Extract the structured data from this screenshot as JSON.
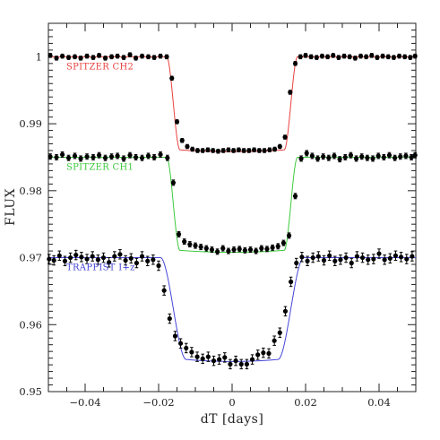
{
  "chart_data": {
    "type": "scatter",
    "title": "",
    "xlabel": "dT [days]",
    "ylabel": "FLUX",
    "xlim": [
      -0.05,
      0.05
    ],
    "ylim": [
      0.95,
      1.005
    ],
    "x_ticks": [
      -0.04,
      -0.02,
      0,
      0.02,
      0.04
    ],
    "x_tick_labels": [
      "−0.04",
      "−0.02",
      "0",
      "0.02",
      "0.04"
    ],
    "y_ticks": [
      0.95,
      0.96,
      0.97,
      0.98,
      0.99,
      1
    ],
    "y_tick_labels": [
      "0.95",
      "0.96",
      "0.97",
      "0.98",
      "0.99",
      "1"
    ],
    "grid": false,
    "series": [
      {
        "name": "SPITZER CH2",
        "color": "#e8423f",
        "label_position": "upper-left",
        "baseline": 1.0,
        "transit_depth": 0.0139,
        "ingress_start": -0.0178,
        "ingress_end": -0.0142,
        "egress_start": 0.0142,
        "egress_end": 0.0178,
        "x": [
          -0.0495,
          -0.0478,
          -0.0462,
          -0.0445,
          -0.0428,
          -0.0412,
          -0.0395,
          -0.0378,
          -0.0362,
          -0.0345,
          -0.0328,
          -0.0312,
          -0.0295,
          -0.0278,
          -0.0262,
          -0.0245,
          -0.0228,
          -0.0212,
          -0.0195,
          -0.0178,
          -0.0164,
          -0.015,
          -0.0136,
          -0.0122,
          -0.0108,
          -0.0094,
          -0.008,
          -0.0066,
          -0.0052,
          -0.0038,
          -0.0024,
          -0.001,
          0.0004,
          0.0018,
          0.0032,
          0.0046,
          0.006,
          0.0074,
          0.0088,
          0.0102,
          0.0116,
          0.013,
          0.0144,
          0.0158,
          0.0172,
          0.0186,
          0.02,
          0.0215,
          0.023,
          0.0245,
          0.026,
          0.0275,
          0.029,
          0.0305,
          0.032,
          0.0335,
          0.035,
          0.0365,
          0.038,
          0.0395,
          0.041,
          0.0425,
          0.044,
          0.0455,
          0.047,
          0.0485,
          0.0498
        ],
        "y": [
          1.0002,
          0.9998,
          1.0001,
          0.9999,
          1.0,
          0.9998,
          1.0001,
          0.9999,
          1.0002,
          0.9998,
          1.0,
          1.0001,
          0.9999,
          1.0003,
          0.9998,
          1.0001,
          1.0,
          0.9999,
          1.0001,
          1.0,
          0.9968,
          0.9903,
          0.9875,
          0.9866,
          0.9862,
          0.986,
          0.986,
          0.9861,
          0.986,
          0.9859,
          0.986,
          0.9861,
          0.986,
          0.9861,
          0.986,
          0.986,
          0.9861,
          0.986,
          0.986,
          0.9861,
          0.9862,
          0.9866,
          0.988,
          0.9947,
          0.999,
          1.0,
          1.0002,
          1.0,
          0.9999,
          1.0001,
          1.0,
          1.0002,
          0.9999,
          1.0001,
          1.0,
          0.9998,
          1.0001,
          1.0,
          1.0002,
          0.9999,
          1.0001,
          1.0,
          0.9999,
          1.0001,
          1.0,
          0.9999,
          1.0001
        ],
        "errors": [
          0.0003,
          0.0003,
          0.0003,
          0.0003,
          0.0003,
          0.0003,
          0.0003,
          0.0003,
          0.0003,
          0.0003,
          0.0003,
          0.0003,
          0.0003,
          0.0003,
          0.0003,
          0.0003,
          0.0003,
          0.0003,
          0.0003,
          0.0003,
          0.0003,
          0.0003,
          0.0003,
          0.0003,
          0.0003,
          0.0003,
          0.0003,
          0.0003,
          0.0003,
          0.0003,
          0.0003,
          0.0003,
          0.0003,
          0.0003,
          0.0003,
          0.0003,
          0.0003,
          0.0003,
          0.0003,
          0.0003,
          0.0003,
          0.0003,
          0.0003,
          0.0003,
          0.0003,
          0.0003,
          0.0003,
          0.0003,
          0.0003,
          0.0003,
          0.0003,
          0.0003,
          0.0003,
          0.0003,
          0.0003,
          0.0003,
          0.0003,
          0.0003,
          0.0003,
          0.0003,
          0.0003,
          0.0003,
          0.0003,
          0.0003,
          0.0003,
          0.0003,
          0.0003
        ]
      },
      {
        "name": "SPITZER CH1",
        "color": "#3ec93e",
        "label_position": "middle-left",
        "baseline": 0.985,
        "transit_depth": 0.0139,
        "ingress_start": -0.0178,
        "ingress_end": -0.0142,
        "egress_start": 0.0142,
        "egress_end": 0.0178,
        "x": [
          -0.0495,
          -0.0478,
          -0.0462,
          -0.0445,
          -0.0428,
          -0.0412,
          -0.0395,
          -0.0378,
          -0.0362,
          -0.0345,
          -0.0328,
          -0.0312,
          -0.0295,
          -0.0278,
          -0.0262,
          -0.0245,
          -0.0228,
          -0.0212,
          -0.0195,
          -0.0176,
          -0.016,
          -0.0145,
          -0.013,
          -0.0115,
          -0.01,
          -0.0085,
          -0.007,
          -0.0055,
          -0.004,
          -0.0025,
          -0.001,
          0.0005,
          0.002,
          0.0035,
          0.005,
          0.0065,
          0.008,
          0.0095,
          0.011,
          0.0125,
          0.014,
          0.0155,
          0.0172,
          0.0188,
          0.0203,
          0.0218,
          0.0233,
          0.0248,
          0.0263,
          0.0278,
          0.0293,
          0.0308,
          0.0323,
          0.0338,
          0.0353,
          0.0368,
          0.0383,
          0.0398,
          0.0413,
          0.0428,
          0.0443,
          0.0458,
          0.0473,
          0.0488,
          0.0498
        ],
        "y": [
          0.9851,
          0.985,
          0.9854,
          0.9849,
          0.9852,
          0.9848,
          0.9851,
          0.985,
          0.9853,
          0.9849,
          0.9851,
          0.9852,
          0.9848,
          0.9853,
          0.985,
          0.9849,
          0.9852,
          0.985,
          0.9854,
          0.9849,
          0.9812,
          0.9735,
          0.9724,
          0.972,
          0.9718,
          0.9716,
          0.9714,
          0.9712,
          0.9709,
          0.9714,
          0.971,
          0.9712,
          0.9713,
          0.9711,
          0.9712,
          0.971,
          0.9714,
          0.9713,
          0.9715,
          0.9717,
          0.9722,
          0.9733,
          0.9792,
          0.9848,
          0.9856,
          0.9852,
          0.9848,
          0.9851,
          0.9849,
          0.9852,
          0.9847,
          0.985,
          0.9853,
          0.9848,
          0.9851,
          0.9849,
          0.9848,
          0.9852,
          0.985,
          0.9853,
          0.9849,
          0.9851,
          0.9852,
          0.985,
          0.9853
        ],
        "errors": [
          0.0004,
          0.0004,
          0.0004,
          0.0004,
          0.0004,
          0.0004,
          0.0004,
          0.0004,
          0.0004,
          0.0004,
          0.0004,
          0.0004,
          0.0004,
          0.0004,
          0.0004,
          0.0004,
          0.0004,
          0.0004,
          0.0004,
          0.0004,
          0.0004,
          0.0004,
          0.0004,
          0.0004,
          0.0004,
          0.0004,
          0.0004,
          0.0004,
          0.0004,
          0.0004,
          0.0004,
          0.0004,
          0.0004,
          0.0004,
          0.0004,
          0.0004,
          0.0004,
          0.0004,
          0.0004,
          0.0004,
          0.0004,
          0.0004,
          0.0004,
          0.0004,
          0.0004,
          0.0004,
          0.0004,
          0.0004,
          0.0004,
          0.0004,
          0.0004,
          0.0004,
          0.0004,
          0.0004,
          0.0004,
          0.0004,
          0.0004,
          0.0004,
          0.0004,
          0.0004,
          0.0004,
          0.0004,
          0.0004,
          0.0004,
          0.0004
        ]
      },
      {
        "name": "TRAPPIST I+z",
        "color": "#4646d8",
        "label_position": "lower-left",
        "baseline": 0.97,
        "transit_depth": 0.0152,
        "ingress_start": -0.0195,
        "ingress_end": -0.0125,
        "egress_start": 0.0125,
        "egress_end": 0.0195,
        "x": [
          -0.0498,
          -0.0485,
          -0.047,
          -0.0455,
          -0.044,
          -0.0425,
          -0.041,
          -0.0395,
          -0.038,
          -0.0365,
          -0.035,
          -0.0335,
          -0.032,
          -0.0305,
          -0.029,
          -0.0275,
          -0.026,
          -0.0245,
          -0.023,
          -0.0215,
          -0.02,
          -0.0185,
          -0.017,
          -0.0155,
          -0.014,
          -0.0125,
          -0.011,
          -0.0095,
          -0.008,
          -0.0065,
          -0.005,
          -0.0035,
          -0.002,
          -0.0005,
          0.001,
          0.0025,
          0.004,
          0.0055,
          0.007,
          0.0085,
          0.01,
          0.0115,
          0.013,
          0.0145,
          0.016,
          0.0175,
          0.019,
          0.0205,
          0.022,
          0.0235,
          0.025,
          0.0265,
          0.028,
          0.0295,
          0.031,
          0.0325,
          0.034,
          0.0355,
          0.037,
          0.0385,
          0.04,
          0.0415,
          0.043,
          0.0445,
          0.046,
          0.0475,
          0.049
        ],
        "y": [
          0.9698,
          0.9696,
          0.9703,
          0.9695,
          0.97,
          0.9704,
          0.9701,
          0.9698,
          0.9702,
          0.9697,
          0.97,
          0.9693,
          0.9702,
          0.9705,
          0.9696,
          0.9699,
          0.9692,
          0.9702,
          0.9695,
          0.9697,
          0.9688,
          0.9651,
          0.9609,
          0.9583,
          0.9572,
          0.9565,
          0.9559,
          0.9552,
          0.9549,
          0.9552,
          0.9546,
          0.9548,
          0.9551,
          0.9541,
          0.9546,
          0.9541,
          0.9541,
          0.9548,
          0.9555,
          0.9558,
          0.9557,
          0.9576,
          0.9588,
          0.962,
          0.9664,
          0.9692,
          0.9701,
          0.9695,
          0.97,
          0.9702,
          0.9696,
          0.9703,
          0.9695,
          0.9697,
          0.97,
          0.9692,
          0.9702,
          0.97,
          0.9697,
          0.9698,
          0.9706,
          0.9697,
          0.9699,
          0.9703,
          0.9701,
          0.9698,
          0.9702
        ],
        "errors": [
          0.0007,
          0.0007,
          0.0007,
          0.0007,
          0.0007,
          0.0007,
          0.0007,
          0.0007,
          0.0007,
          0.0007,
          0.0007,
          0.0007,
          0.0007,
          0.0007,
          0.0007,
          0.0007,
          0.0007,
          0.0007,
          0.0007,
          0.0007,
          0.0007,
          0.0007,
          0.0007,
          0.0007,
          0.0007,
          0.0007,
          0.0007,
          0.0007,
          0.0007,
          0.0007,
          0.0007,
          0.0007,
          0.0007,
          0.0007,
          0.0007,
          0.0007,
          0.0007,
          0.0007,
          0.0007,
          0.0007,
          0.0007,
          0.0007,
          0.0007,
          0.0007,
          0.0007,
          0.0007,
          0.0007,
          0.0007,
          0.0007,
          0.0007,
          0.0007,
          0.0007,
          0.0007,
          0.0007,
          0.0007,
          0.0007,
          0.0007,
          0.0007,
          0.0007,
          0.0007,
          0.0007,
          0.0007,
          0.0007,
          0.0007,
          0.0007,
          0.0007,
          0.0007
        ]
      }
    ]
  }
}
